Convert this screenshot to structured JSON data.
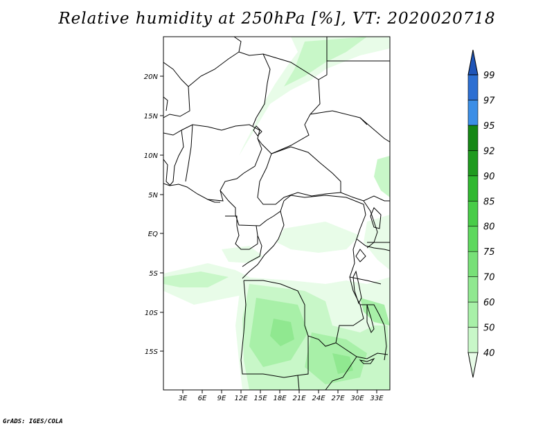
{
  "title": "Relative humidity at 250hPa [%], VT: 2020020718",
  "credit": "GrADS: IGES/COLA",
  "map": {
    "lon_range": [
      0,
      35
    ],
    "lat_range": [
      -20,
      24
    ],
    "lat_ticks": [
      "20N",
      "15N",
      "10N",
      "5N",
      "EQ",
      "5S",
      "10S",
      "15S"
    ],
    "lon_ticks": [
      "3E",
      "6E",
      "9E",
      "12E",
      "15E",
      "18E",
      "21E",
      "24E",
      "27E",
      "30E",
      "33E"
    ],
    "field": "Relative humidity",
    "level": "250hPa",
    "units": "%"
  },
  "colorbar": {
    "labels": [
      "40",
      "50",
      "60",
      "70",
      "75",
      "80",
      "85",
      "90",
      "92",
      "95",
      "97",
      "99"
    ],
    "colors": [
      "#e8fce8",
      "#c8f7c8",
      "#a8f0a8",
      "#90e890",
      "#78e078",
      "#5ed85e",
      "#48cc48",
      "#30b830",
      "#1f9a1f",
      "#168716",
      "#3c8ee6",
      "#2d6fd2",
      "#1f55b8"
    ]
  }
}
